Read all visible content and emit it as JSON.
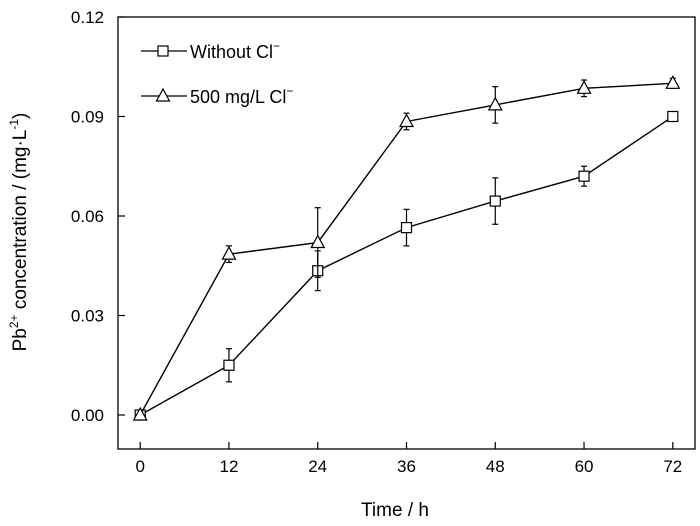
{
  "chart_data": {
    "type": "line",
    "x": [
      0,
      12,
      24,
      36,
      48,
      60,
      72
    ],
    "xlabel": "Time / h",
    "ylabel_parts": {
      "base": "Pb",
      "sup": "2+",
      "middle": " concentration / (mg·L",
      "exp": "-1",
      "end": ")"
    },
    "xlim": [
      -3,
      75
    ],
    "ylim": [
      0,
      0.12
    ],
    "y_baseline": -0.0085,
    "xticks": [
      0,
      12,
      24,
      36,
      48,
      60,
      72
    ],
    "yticks": [
      0,
      0.03,
      0.06,
      0.09,
      0.12
    ],
    "xtick_labels": [
      "0",
      "12",
      "24",
      "36",
      "48",
      "60",
      "72"
    ],
    "ytick_labels": [
      "0.00",
      "0.03",
      "0.06",
      "0.09",
      "0.12"
    ],
    "grid": false,
    "legend_position": "top-left",
    "series": [
      {
        "name_base": "Without Cl",
        "name_sup": "−",
        "marker": "square",
        "values": [
          0.0,
          0.015,
          0.0435,
          0.0565,
          0.0645,
          0.072,
          0.09
        ],
        "errors": [
          0.0,
          0.005,
          0.006,
          0.0055,
          0.007,
          0.003,
          0.0
        ]
      },
      {
        "name_base": "500 mg/L Cl",
        "name_sup": "−",
        "marker": "triangle",
        "values": [
          0.0,
          0.0485,
          0.052,
          0.0885,
          0.0935,
          0.0985,
          0.1
        ],
        "errors": [
          0.0,
          0.0025,
          0.0105,
          0.0025,
          0.0055,
          0.0025,
          0.0015
        ]
      }
    ]
  }
}
